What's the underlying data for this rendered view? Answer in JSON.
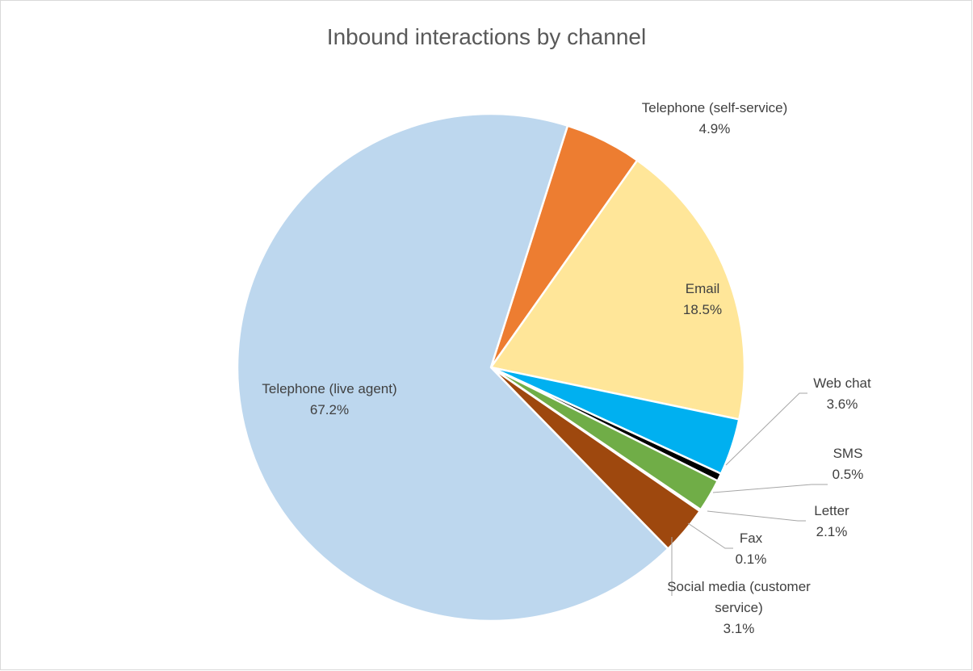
{
  "chart_data": {
    "type": "pie",
    "title": "Inbound interactions by channel",
    "slices": [
      {
        "name": "Telephone (self-service)",
        "value": 4.9,
        "label": "4.9%",
        "color": "#ED7D31"
      },
      {
        "name": "Email",
        "value": 18.5,
        "label": "18.5%",
        "color": "#FFE699"
      },
      {
        "name": "Web chat",
        "value": 3.6,
        "label": "3.6%",
        "color": "#00B0F0"
      },
      {
        "name": "SMS",
        "value": 0.5,
        "label": "0.5%",
        "color": "#000000"
      },
      {
        "name": "Letter",
        "value": 2.1,
        "label": "2.1%",
        "color": "#70AD47"
      },
      {
        "name": "Fax",
        "value": 0.1,
        "label": "0.1%",
        "color": "#2F5597"
      },
      {
        "name": "Social media (customer service)",
        "value": 3.1,
        "label": "3.1%",
        "color": "#9E480E"
      },
      {
        "name": "Telephone (live agent)",
        "value": 67.2,
        "label": "67.2%",
        "color": "#BDD7EE"
      }
    ],
    "legend": "none"
  }
}
